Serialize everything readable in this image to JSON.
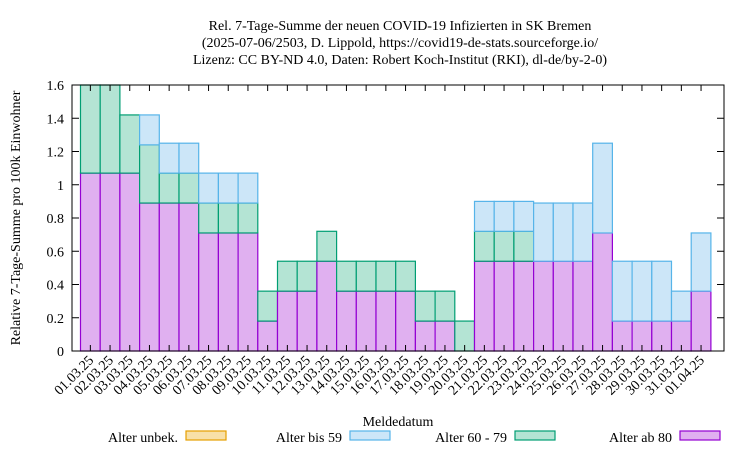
{
  "chart_data": {
    "type": "bar",
    "stacked": true,
    "title": [
      "Rel. 7-Tage-Summe der neuen COVID-19 Infizierten in SK Bremen",
      "(2025-07-06/2503, D. Lippold, https://covid19-de-stats.sourceforge.io/",
      "Lizenz: CC BY-ND 4.0, Daten: Robert Koch-Institut (RKI), dl-de/by-2-0)"
    ],
    "xlabel": "Meldedatum",
    "ylabel": "Relative 7-Tage-Summe pro 100k Einwohner",
    "ylim": [
      0,
      1.6
    ],
    "yticks": [
      "0",
      "0.2",
      "0.4",
      "0.6",
      "0.8",
      "1",
      "1.2",
      "1.4",
      "1.6"
    ],
    "categories": [
      "01.03.25",
      "02.03.25",
      "03.03.25",
      "04.03.25",
      "05.03.25",
      "06.03.25",
      "07.03.25",
      "08.03.25",
      "09.03.25",
      "10.03.25",
      "11.03.25",
      "12.03.25",
      "13.03.25",
      "14.03.25",
      "15.03.25",
      "16.03.25",
      "17.03.25",
      "18.03.25",
      "19.03.25",
      "20.03.25",
      "21.03.25",
      "22.03.25",
      "23.03.25",
      "24.03.25",
      "25.03.25",
      "26.03.25",
      "27.03.25",
      "28.03.25",
      "29.03.25",
      "30.03.25",
      "31.03.25",
      "01.04.25"
    ],
    "series": [
      {
        "name": "Alter ab 80",
        "color": "#e0b0f0",
        "stroke": "#9400d3",
        "values": [
          1.07,
          1.07,
          1.07,
          0.89,
          0.89,
          0.89,
          0.71,
          0.71,
          0.71,
          0.18,
          0.36,
          0.36,
          0.54,
          0.36,
          0.36,
          0.36,
          0.36,
          0.18,
          0.18,
          0.0,
          0.54,
          0.54,
          0.54,
          0.54,
          0.54,
          0.54,
          0.71,
          0.18,
          0.18,
          0.18,
          0.18,
          0.36
        ]
      },
      {
        "name": "Alter 60 - 79",
        "color": "#b4e4d4",
        "stroke": "#009e73",
        "values": [
          0.53,
          0.53,
          0.35,
          0.35,
          0.18,
          0.18,
          0.18,
          0.18,
          0.18,
          0.18,
          0.18,
          0.18,
          0.18,
          0.18,
          0.18,
          0.18,
          0.18,
          0.18,
          0.18,
          0.18,
          0.18,
          0.18,
          0.18,
          0.0,
          0.0,
          0.0,
          0.0,
          0.0,
          0.0,
          0.0,
          0.0,
          0.0
        ]
      },
      {
        "name": "Alter bis 59",
        "color": "#cce6f8",
        "stroke": "#56b4e9",
        "values": [
          0.0,
          0.0,
          0.0,
          0.18,
          0.18,
          0.18,
          0.18,
          0.18,
          0.18,
          0.0,
          0.0,
          0.0,
          0.0,
          0.0,
          0.0,
          0.0,
          0.0,
          0.0,
          0.0,
          0.0,
          0.18,
          0.18,
          0.18,
          0.35,
          0.35,
          0.35,
          0.54,
          0.36,
          0.36,
          0.36,
          0.18,
          0.35
        ]
      },
      {
        "name": "Alter unbek.",
        "color": "#f8e0a8",
        "stroke": "#e69f00",
        "values": [
          0,
          0,
          0,
          0,
          0,
          0,
          0,
          0,
          0,
          0,
          0,
          0,
          0,
          0,
          0,
          0,
          0,
          0,
          0,
          0,
          0,
          0,
          0,
          0,
          0,
          0,
          0,
          0,
          0,
          0,
          0,
          0
        ]
      }
    ],
    "legend": [
      "Alter unbek.",
      "Alter bis 59",
      "Alter 60 - 79",
      "Alter ab 80"
    ],
    "legend_position": "bottom",
    "grid": false
  }
}
